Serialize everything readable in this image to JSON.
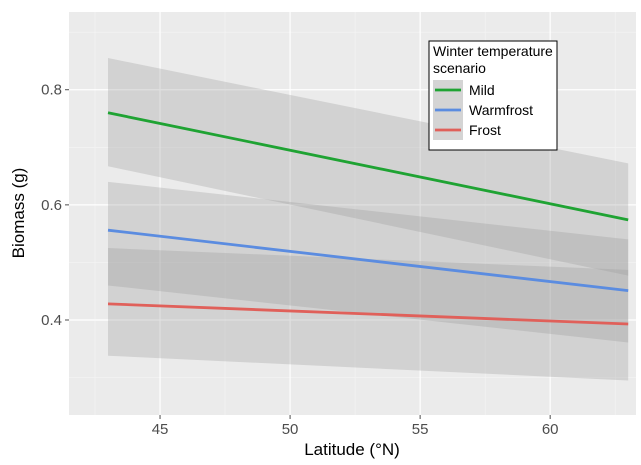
{
  "chart_data": {
    "type": "line",
    "title": "",
    "xlabel": "Latitude (°N)",
    "ylabel": "Biomass (g)",
    "xlim": [
      41.5,
      63.3
    ],
    "ylim": [
      0.235,
      0.935
    ],
    "xticks": [
      45,
      50,
      55,
      60
    ],
    "xtick_labels": [
      "45",
      "50",
      "55",
      "60"
    ],
    "yticks": [
      0.4,
      0.6,
      0.8
    ],
    "ytick_labels": [
      "0.4",
      "0.6",
      "0.8"
    ],
    "grid": true,
    "legend": {
      "title": "Winter temperature scenario",
      "title_lines": [
        "Winter temperature",
        "scenario"
      ],
      "placement": "top-right"
    },
    "series": [
      {
        "name": "Mild",
        "color": "#1fa333",
        "x": [
          43,
          63
        ],
        "y": [
          0.76,
          0.574
        ],
        "ci_lower": [
          0.667,
          0.477
        ],
        "ci_upper": [
          0.855,
          0.672
        ]
      },
      {
        "name": "Warmfrost",
        "color": "#5b8ce0",
        "x": [
          43,
          63
        ],
        "y": [
          0.556,
          0.451
        ],
        "ci_lower": [
          0.46,
          0.361
        ],
        "ci_upper": [
          0.64,
          0.54
        ]
      },
      {
        "name": "Frost",
        "color": "#e0605a",
        "x": [
          43,
          63
        ],
        "y": [
          0.428,
          0.393
        ],
        "ci_lower": [
          0.338,
          0.295
        ],
        "ci_upper": [
          0.525,
          0.487
        ]
      }
    ]
  }
}
